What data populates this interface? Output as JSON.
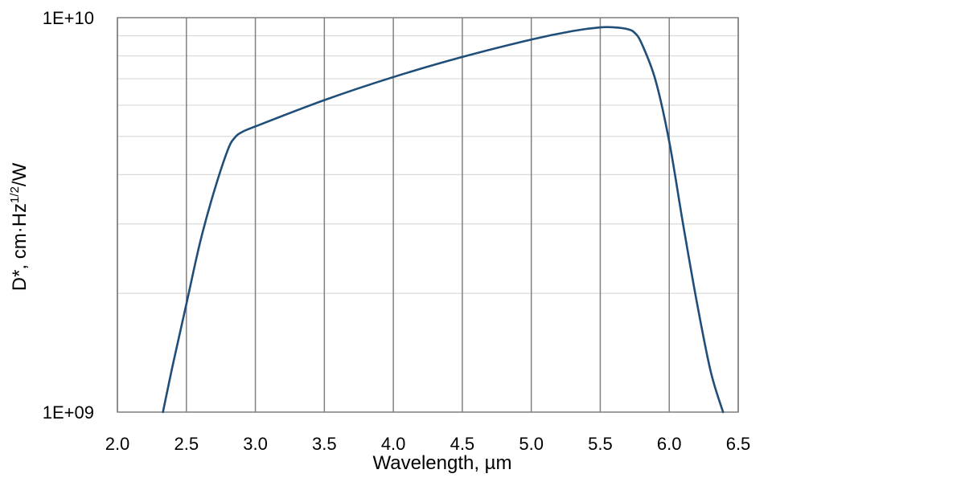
{
  "chart_data": {
    "type": "line",
    "title": "",
    "xlabel": "Wavelength, µm",
    "ylabel": {
      "main": "D*, cm·Hz",
      "sup": "1/2",
      "tail": "/W"
    },
    "xlim": [
      2.0,
      6.5
    ],
    "ylim": [
      1000000000,
      10000000000
    ],
    "yscale": "log",
    "grid": true,
    "x_ticks": [
      2.0,
      2.5,
      3.0,
      3.5,
      4.0,
      4.5,
      5.0,
      5.5,
      6.0,
      6.5
    ],
    "x_tick_labels": [
      "2.0",
      "2.5",
      "3.0",
      "3.5",
      "4.0",
      "4.5",
      "5.0",
      "5.5",
      "6.0",
      "6.5"
    ],
    "y_tick_labels": [
      {
        "value": 1000000000,
        "label": "1E+09"
      },
      {
        "value": 10000000000,
        "label": "1E+10"
      }
    ],
    "y_minor_gridlines": [
      2000000000,
      3000000000,
      4000000000,
      5000000000,
      6000000000,
      7000000000,
      8000000000,
      9000000000
    ],
    "series": [
      {
        "color": "#1f4e79",
        "x": [
          2.33,
          2.4,
          2.5,
          2.6,
          2.7,
          2.8,
          2.85,
          2.9,
          3.0,
          3.5,
          4.0,
          4.5,
          5.0,
          5.3,
          5.5,
          5.6,
          5.7,
          5.75,
          5.8,
          5.9,
          6.0,
          6.1,
          6.2,
          6.3,
          6.39
        ],
        "y": [
          1000000000,
          1310000000,
          1880000000,
          2700000000,
          3620000000,
          4620000000,
          4960000000,
          5120000000,
          5300000000,
          6180000000,
          7070000000,
          7950000000,
          8800000000,
          9250000000,
          9450000000,
          9450000000,
          9350000000,
          9150000000,
          8600000000,
          6950000000,
          4850000000,
          3000000000,
          1900000000,
          1270000000,
          1000000000
        ]
      }
    ]
  }
}
